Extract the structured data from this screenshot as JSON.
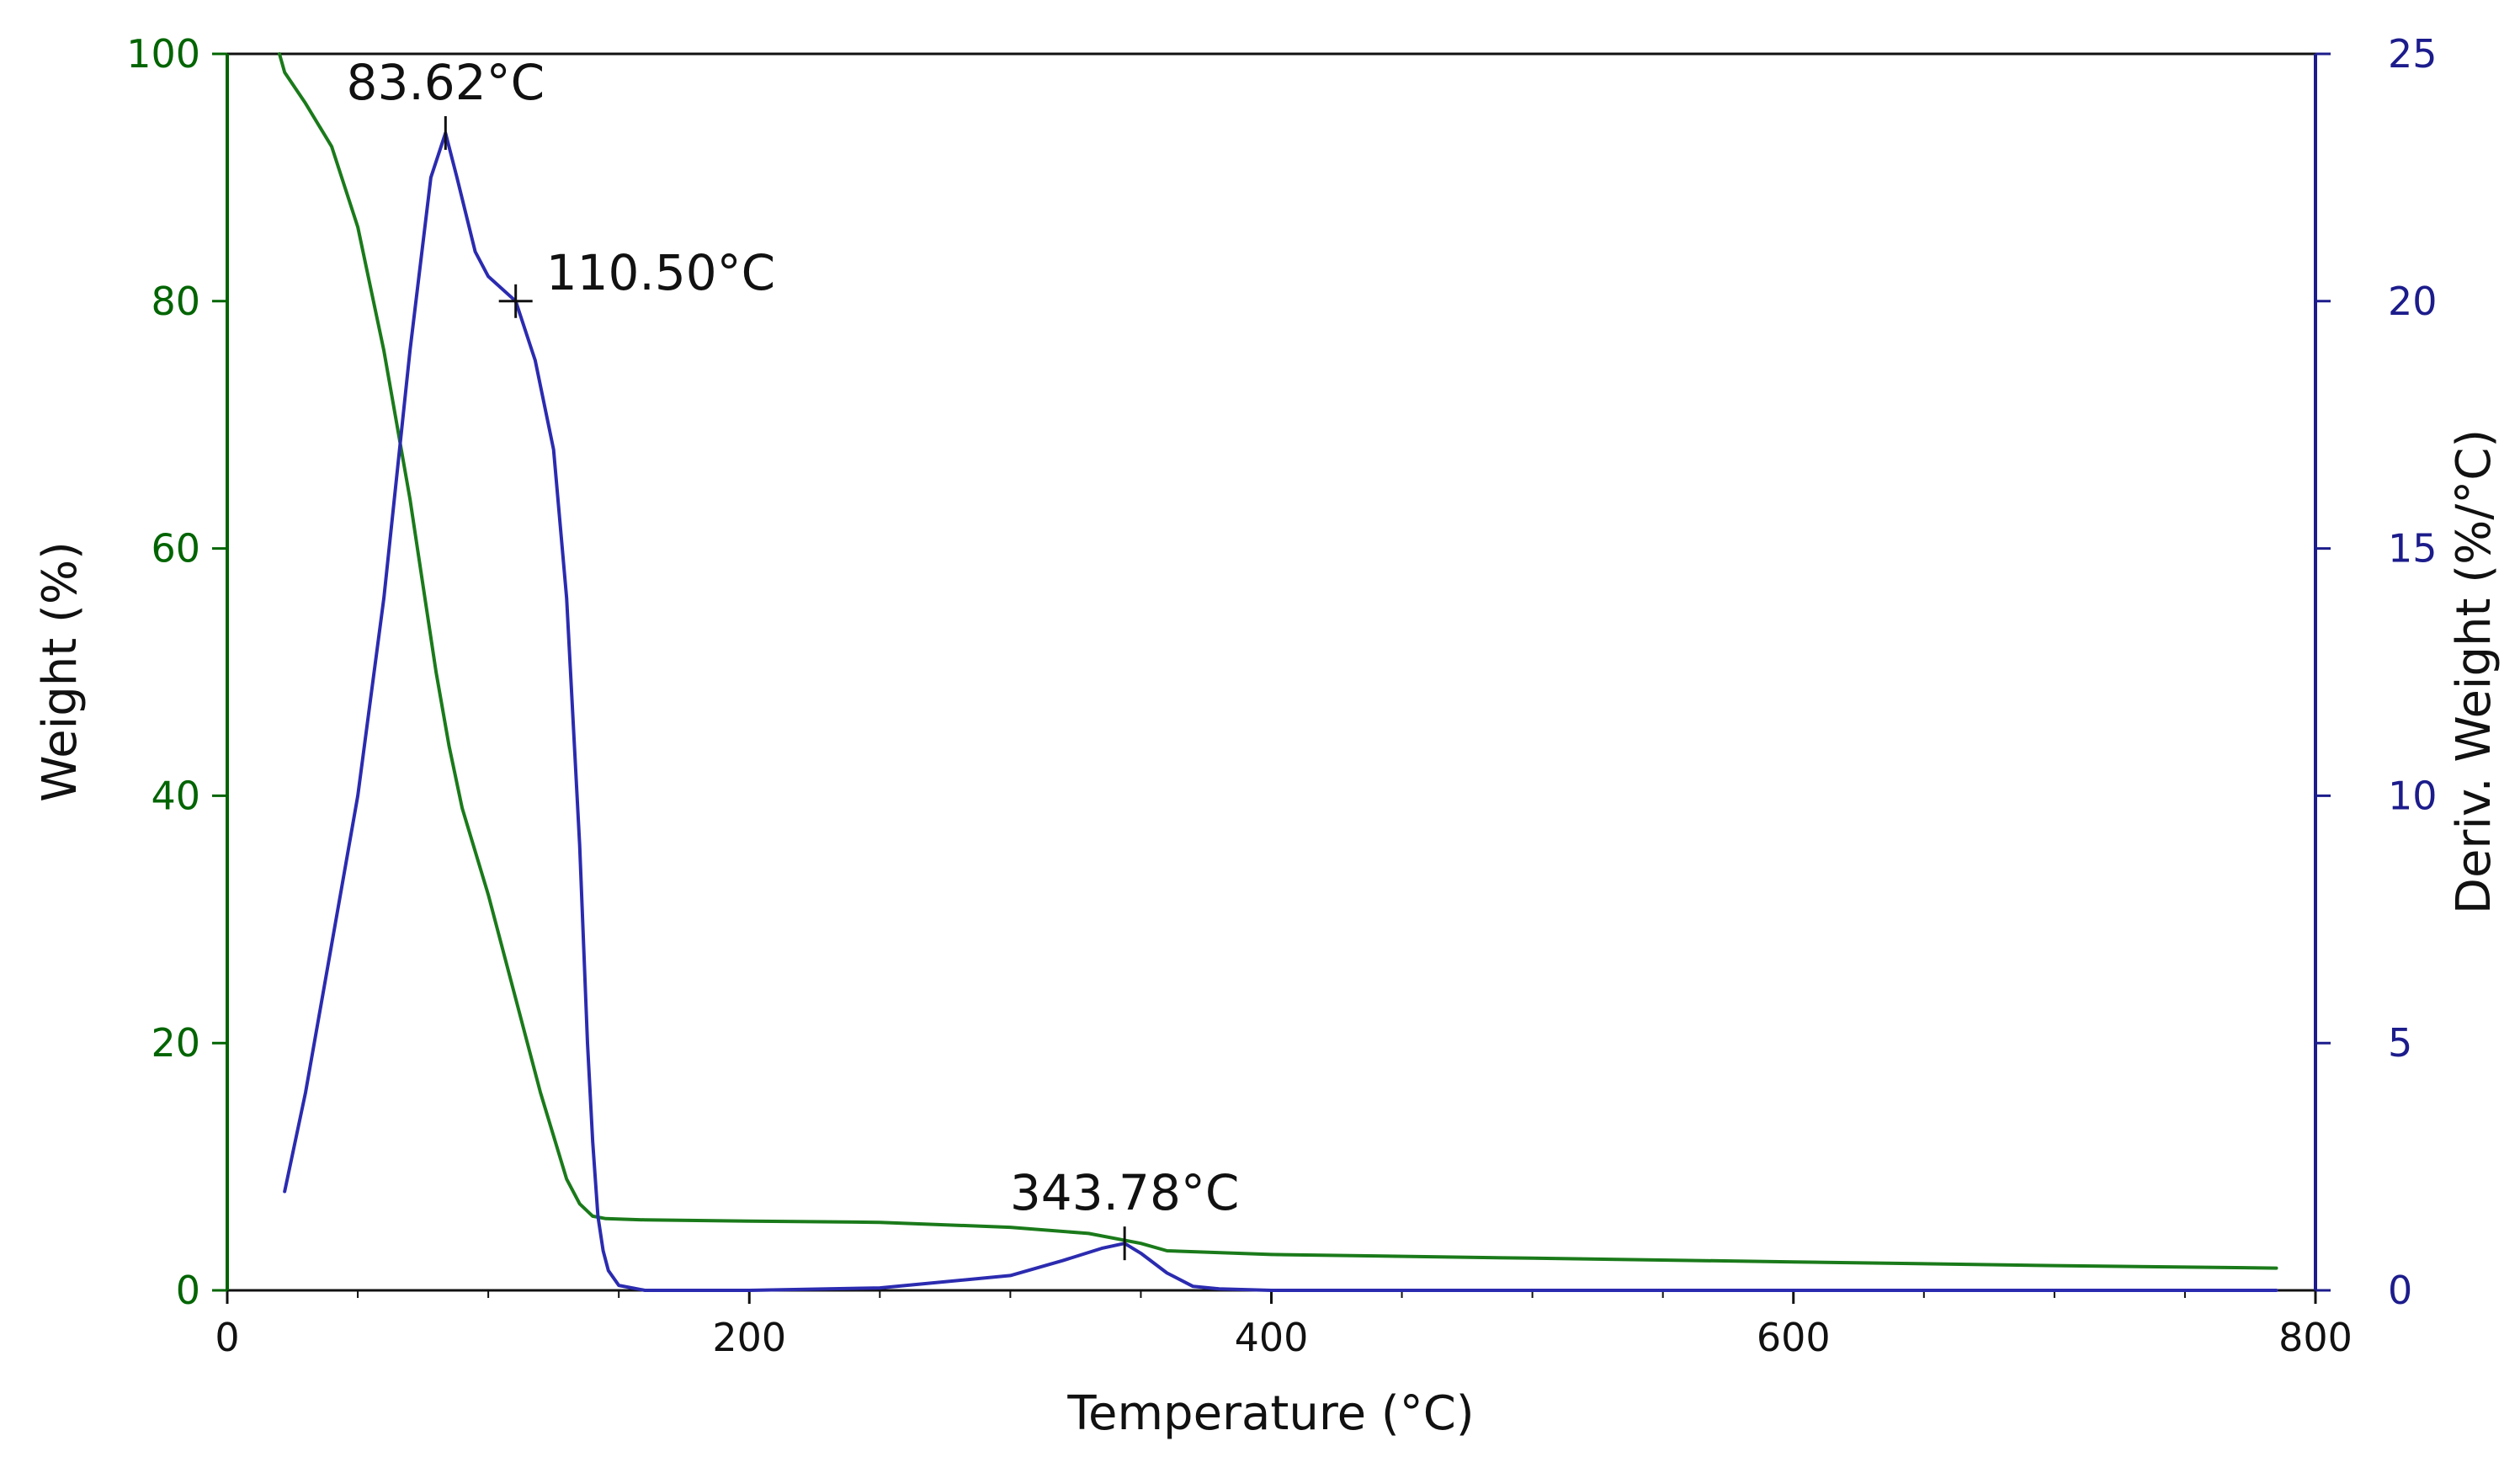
{
  "chart_data": {
    "type": "line",
    "title": "",
    "xlabel": "Temperature (°C)",
    "ylabel_left": "Weight (%)",
    "ylabel_right": "Deriv. Weight (%/°C)",
    "xlim": [
      0,
      800
    ],
    "ylim_left": [
      0,
      100
    ],
    "ylim_right": [
      0,
      25
    ],
    "x_ticks": [
      0,
      200,
      400,
      600,
      800
    ],
    "x_tick_labels": [
      "0",
      "200",
      "400",
      "600",
      "800"
    ],
    "y_left_ticks": [
      0,
      20,
      40,
      60,
      80,
      100
    ],
    "y_left_tick_labels": [
      "0",
      "20",
      "40",
      "60",
      "80",
      "100"
    ],
    "y_right_ticks": [
      0,
      5,
      10,
      15,
      20,
      25
    ],
    "y_right_tick_labels": [
      "0",
      "5",
      "10",
      "15",
      "20",
      "25"
    ],
    "grid": false,
    "colors": {
      "left_axis": "#006400",
      "right_axis": "#1c1c8c",
      "weight": "#1a7a1a",
      "deriv": "#2b2bb0",
      "frame": "#111111"
    },
    "series": [
      {
        "name": "Weight",
        "axis": "left",
        "x": [
          20,
          22,
          30,
          40,
          50,
          60,
          65,
          70,
          75,
          80,
          85,
          90,
          100,
          110,
          120,
          130,
          135,
          140,
          145,
          160,
          200,
          250,
          300,
          330,
          350,
          360,
          400,
          500,
          600,
          700,
          785
        ],
        "y": [
          100,
          98.5,
          96,
          92.5,
          86,
          76,
          70,
          64,
          57,
          50,
          44,
          39,
          32,
          24,
          16,
          9,
          7,
          6,
          5.8,
          5.7,
          5.6,
          5.5,
          5.1,
          4.6,
          3.8,
          3.2,
          2.9,
          2.6,
          2.3,
          2.0,
          1.8
        ]
      },
      {
        "name": "Deriv. Weight",
        "axis": "right",
        "x": [
          22,
          30,
          40,
          50,
          60,
          70,
          78,
          83.62,
          88,
          95,
          100,
          110.5,
          118,
          125,
          130,
          135,
          138,
          140,
          142,
          144,
          146,
          150,
          160,
          200,
          250,
          300,
          320,
          335,
          343.78,
          350,
          360,
          370,
          380,
          400,
          500,
          600,
          700,
          785
        ],
        "y": [
          2,
          4,
          7,
          10,
          14,
          19,
          22.5,
          23.4,
          22.5,
          21,
          20.5,
          20,
          18.8,
          17,
          14,
          9,
          5,
          3,
          1.5,
          0.8,
          0.4,
          0.1,
          0.0,
          0.0,
          0.05,
          0.3,
          0.6,
          0.85,
          0.95,
          0.75,
          0.35,
          0.08,
          0.03,
          0.0,
          0.0,
          0.0,
          0.0,
          0.0
        ]
      }
    ],
    "annotations": [
      {
        "text": "83.62°C",
        "x": 83.62,
        "y": 23.4,
        "axis": "right"
      },
      {
        "text": "110.50°C",
        "x": 110.5,
        "y": 20.0,
        "axis": "right"
      },
      {
        "text": "343.78°C",
        "x": 343.78,
        "y": 0.95,
        "axis": "right"
      }
    ]
  }
}
